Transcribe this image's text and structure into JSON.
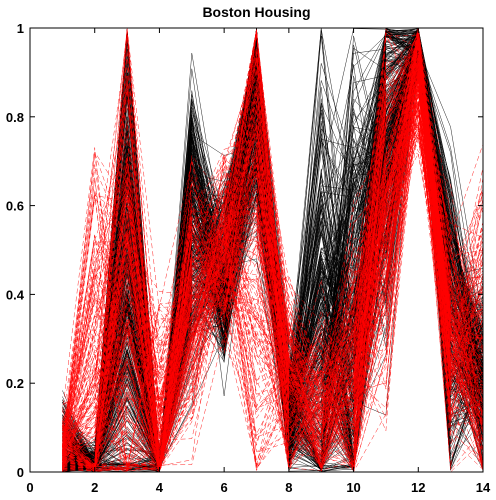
{
  "chart_data": {
    "type": "line",
    "title": "Boston Housing",
    "xlabel": "",
    "ylabel": "",
    "xlim": [
      0,
      14
    ],
    "ylim": [
      0,
      1
    ],
    "x_ticks": [
      0,
      2,
      4,
      6,
      8,
      10,
      12,
      14
    ],
    "y_ticks": [
      0,
      0.2,
      0.4,
      0.6,
      0.8,
      1
    ],
    "grid": false,
    "legend": null,
    "plot_kind": "parallel-coordinates",
    "dimensions": [
      1,
      2,
      3,
      4,
      5,
      6,
      7,
      8,
      9,
      10,
      11,
      12,
      13,
      14
    ],
    "series_styles": [
      {
        "key": "solid",
        "color": "#000000",
        "dash": "none"
      },
      {
        "key": "dashed",
        "color": "#ff0000",
        "dash": "5,3"
      }
    ],
    "profiles": {
      "solid": {
        "color": "#000000",
        "dash": "none",
        "count": 320,
        "dimension_mean": [
          0.05,
          0.0,
          0.45,
          0.0,
          0.55,
          0.45,
          0.85,
          0.12,
          0.3,
          0.35,
          0.75,
          0.97,
          0.35,
          0.22
        ],
        "dimension_spread": [
          0.05,
          0.03,
          0.35,
          0.02,
          0.15,
          0.1,
          0.15,
          0.07,
          0.3,
          0.3,
          0.2,
          0.04,
          0.15,
          0.1
        ]
      },
      "dashed": {
        "color": "#ff0000",
        "dash": "5,3",
        "count": 220,
        "dimension_mean": [
          0.04,
          0.1,
          0.35,
          0.05,
          0.4,
          0.5,
          0.55,
          0.2,
          0.15,
          0.2,
          0.6,
          0.9,
          0.3,
          0.3
        ],
        "dimension_spread": [
          0.04,
          0.25,
          0.3,
          0.15,
          0.15,
          0.1,
          0.3,
          0.1,
          0.1,
          0.15,
          0.2,
          0.08,
          0.12,
          0.2
        ]
      }
    }
  }
}
